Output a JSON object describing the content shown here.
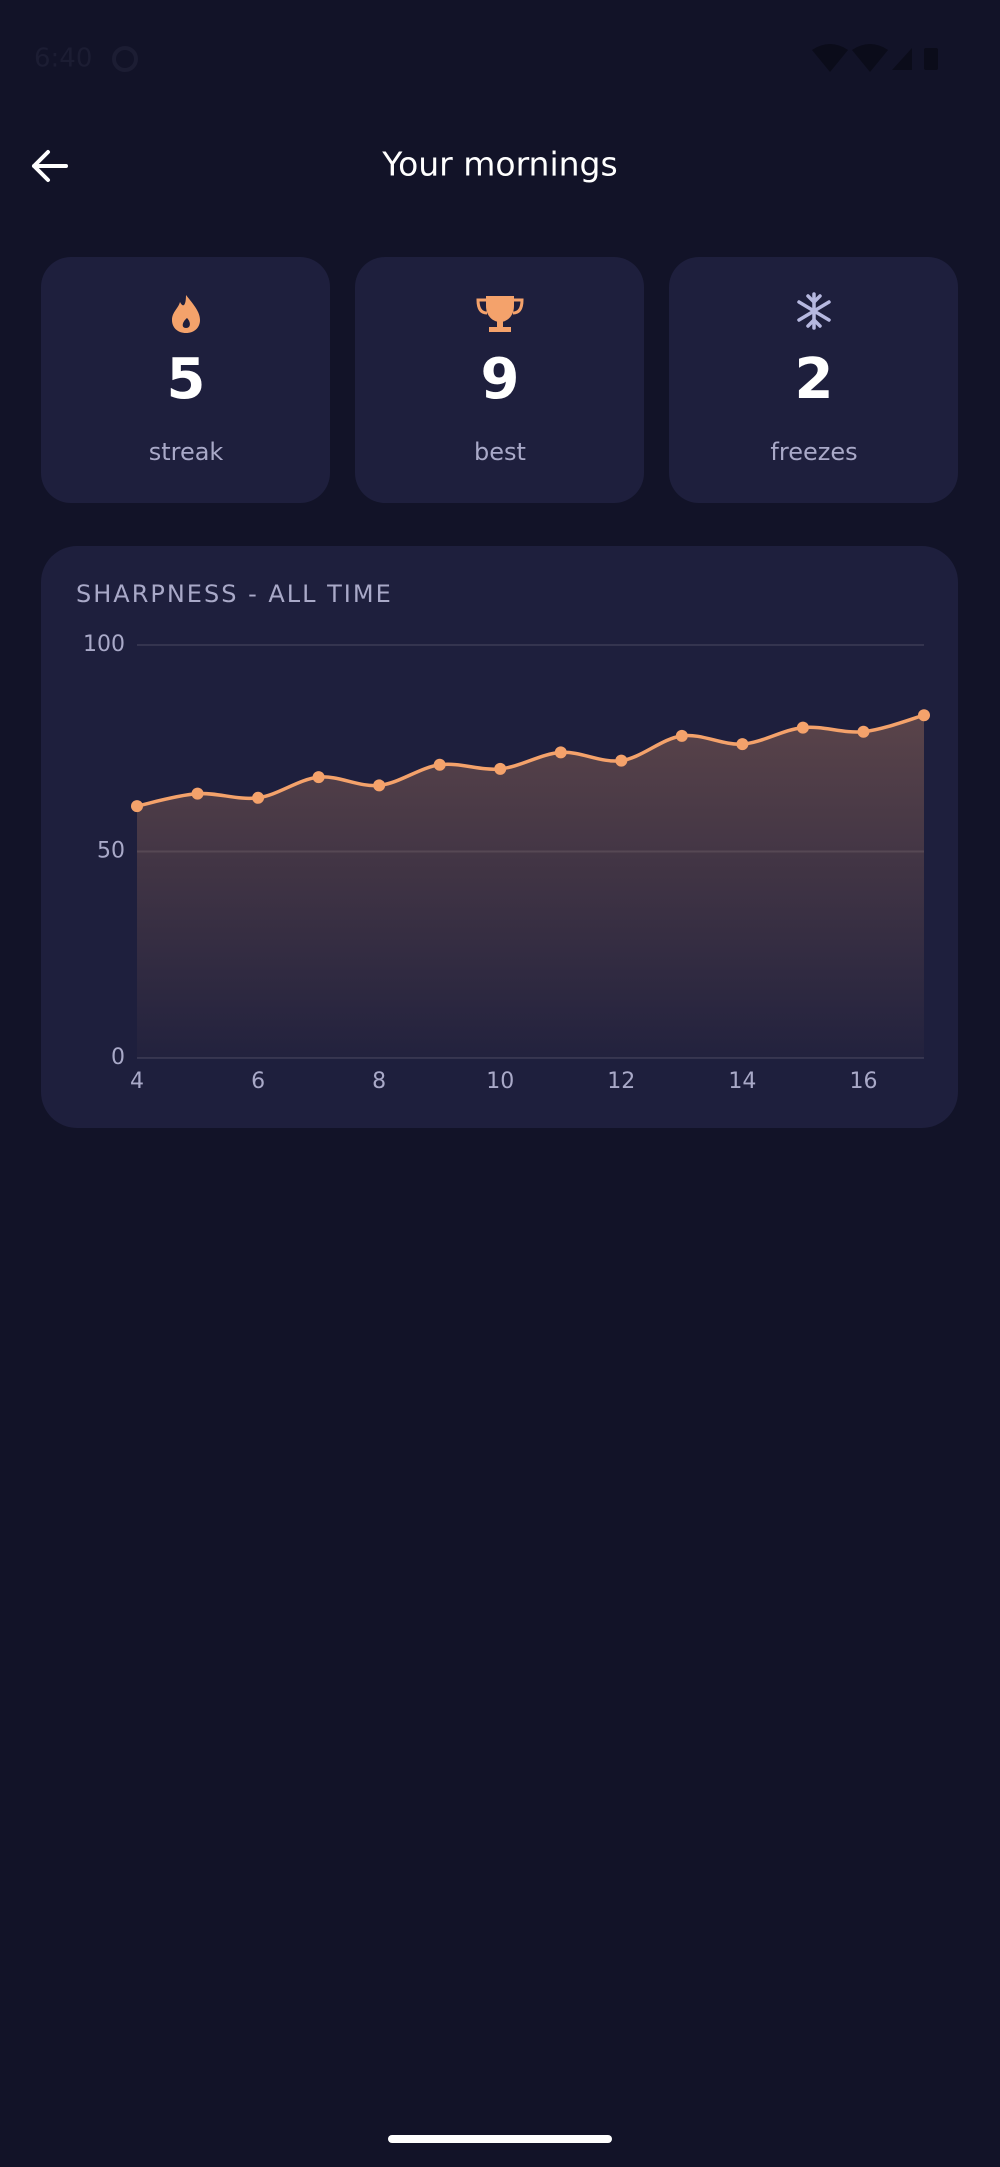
{
  "status_bar": {
    "time": "6:40"
  },
  "header": {
    "title": "Your mornings"
  },
  "stats": [
    {
      "value": 5,
      "label": "streak"
    },
    {
      "value": 9,
      "label": "best"
    },
    {
      "value": 2,
      "label": "freezes"
    }
  ],
  "chart_data": {
    "type": "line",
    "title": "SHARPNESS - ALL TIME",
    "x": [
      4,
      5,
      6,
      7,
      8,
      9,
      10,
      11,
      12,
      13,
      14,
      15,
      16,
      17
    ],
    "series": [
      {
        "color": "#f4a26b",
        "values": [
          61,
          64,
          63,
          68,
          66,
          71,
          70,
          74,
          72,
          78,
          76,
          80,
          79,
          83
        ]
      }
    ],
    "xlim": [
      4,
      17
    ],
    "xticks": [
      4,
      6,
      8,
      10,
      12,
      14,
      16
    ],
    "ylim": [
      0,
      100
    ],
    "yticks": [
      0,
      50,
      100
    ],
    "grid": true
  }
}
